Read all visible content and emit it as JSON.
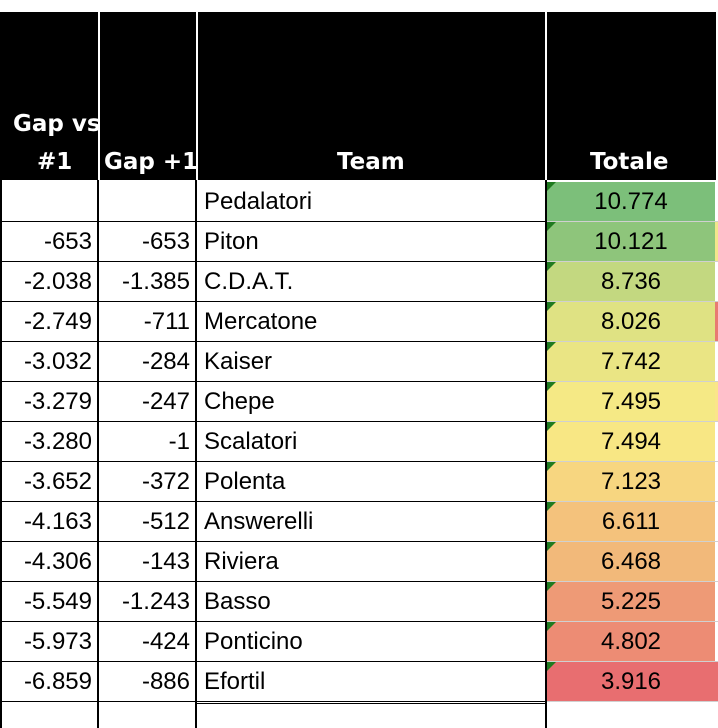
{
  "headers": {
    "gap1_line1": "Gap vs",
    "gap1_line2": "#1",
    "gapplus": "Gap +1",
    "team": "Team",
    "totale": "Totale"
  },
  "rows": [
    {
      "gap1": "",
      "gapplus": "",
      "team": "Pedalatori",
      "totale": "10.774",
      "color": "#7cbf7a"
    },
    {
      "gap1": "-653",
      "gapplus": "-653",
      "team": "Piton",
      "totale": "10.121",
      "color": "#8ec57b"
    },
    {
      "gap1": "-2.038",
      "gapplus": "-1.385",
      "team": "C.D.A.T.",
      "totale": "8.736",
      "color": "#c3d880"
    },
    {
      "gap1": "-2.749",
      "gapplus": "-711",
      "team": "Mercatone",
      "totale": "8.026",
      "color": "#dfe283"
    },
    {
      "gap1": "-3.032",
      "gapplus": "-284",
      "team": "Kaiser",
      "totale": "7.742",
      "color": "#eae584"
    },
    {
      "gap1": "-3.279",
      "gapplus": "-247",
      "team": "Chepe",
      "totale": "7.495",
      "color": "#f5e985"
    },
    {
      "gap1": "-3.280",
      "gapplus": "-1",
      "team": "Scalatori",
      "totale": "7.494",
      "color": "#f8e784"
    },
    {
      "gap1": "-3.652",
      "gapplus": "-372",
      "team": "Polenta",
      "totale": "7.123",
      "color": "#f7d680"
    },
    {
      "gap1": "-4.163",
      "gapplus": "-512",
      "team": "Answerelli",
      "totale": "6.611",
      "color": "#f4c27c"
    },
    {
      "gap1": "-4.306",
      "gapplus": "-143",
      "team": "Riviera",
      "totale": "6.468",
      "color": "#f2b97a"
    },
    {
      "gap1": "-5.549",
      "gapplus": "-1.243",
      "team": "Basso",
      "totale": "5.225",
      "color": "#ee9a76"
    },
    {
      "gap1": "-5.973",
      "gapplus": "-424",
      "team": "Ponticino",
      "totale": "4.802",
      "color": "#ed8c74"
    },
    {
      "gap1": "-6.859",
      "gapplus": "-886",
      "team": "Efortil",
      "totale": "3.916",
      "color": "#e86e70"
    }
  ],
  "edge_colors": [
    "#ffffff",
    "#f2e68c",
    "#ffffff",
    "#e87a72",
    "#ffffff",
    "#fbe58a",
    "#ffffff",
    "#ffffff",
    "#ffffff",
    "#ffffff",
    "#ffffff",
    "#ffffff",
    "#e86e70"
  ]
}
